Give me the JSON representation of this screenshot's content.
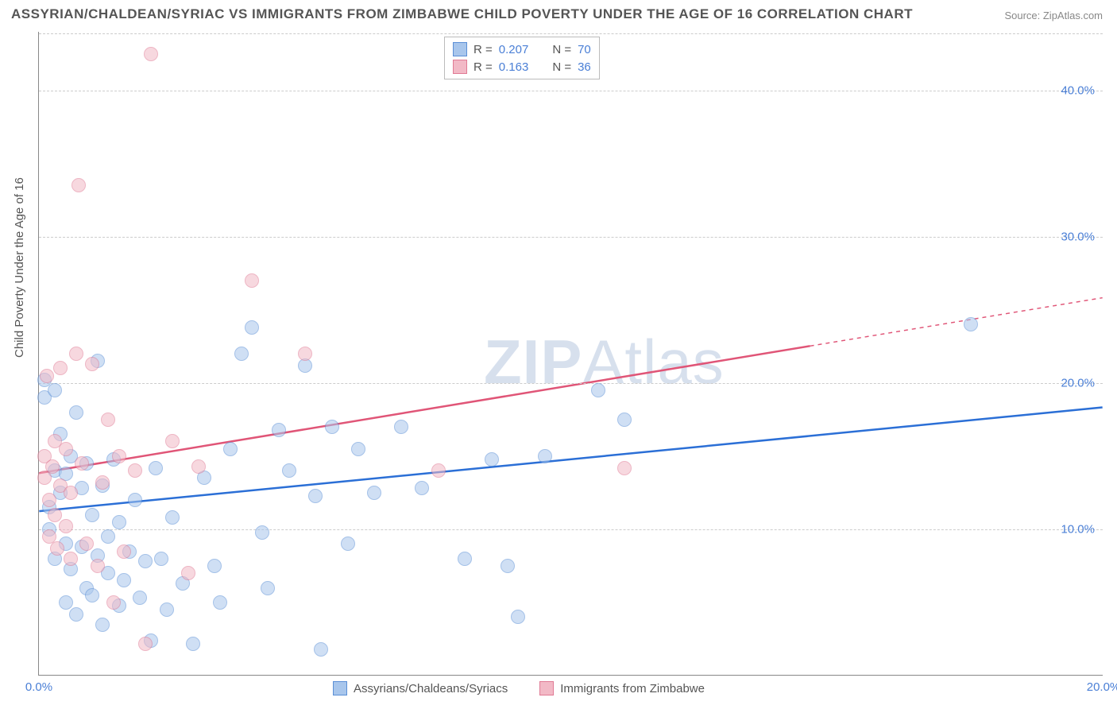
{
  "title": "ASSYRIAN/CHALDEAN/SYRIAC VS IMMIGRANTS FROM ZIMBABWE CHILD POVERTY UNDER THE AGE OF 16 CORRELATION CHART",
  "source": "Source: ZipAtlas.com",
  "ylabel": "Child Poverty Under the Age of 16",
  "watermark_a": "ZIP",
  "watermark_b": "Atlas",
  "chart": {
    "type": "scatter-with-regression",
    "background_color": "#ffffff",
    "grid_color": "#cccccc",
    "axis_color": "#888888",
    "xlim": [
      0,
      20
    ],
    "ylim": [
      0,
      44
    ],
    "yticks": [
      10,
      20,
      30,
      40
    ],
    "ytick_labels": [
      "10.0%",
      "20.0%",
      "30.0%",
      "40.0%"
    ],
    "xticks": [
      0,
      20
    ],
    "xtick_labels": [
      "0.0%",
      "20.0%"
    ],
    "label_fontsize": 15,
    "tick_color": "#4a7fd6",
    "marker_radius": 9,
    "marker_border_width": 1.2,
    "marker_opacity": 0.55,
    "line_width": 2.5,
    "dash_line_width": 1.5
  },
  "series": [
    {
      "name": "Assyrians/Chaldeans/Syriacs",
      "color_fill": "#a8c6ec",
      "color_border": "#5b8fd6",
      "line_color": "#2b6fd6",
      "R": "0.207",
      "N": "70",
      "regression": {
        "x1": 0,
        "y1": 11.2,
        "x2": 20,
        "y2": 18.3,
        "solid_to_x": 20
      },
      "points": [
        [
          0.1,
          20.2
        ],
        [
          0.1,
          19.0
        ],
        [
          0.2,
          11.5
        ],
        [
          0.2,
          10.0
        ],
        [
          0.3,
          14.0
        ],
        [
          0.3,
          8.0
        ],
        [
          0.3,
          19.5
        ],
        [
          0.4,
          16.5
        ],
        [
          0.4,
          12.5
        ],
        [
          0.5,
          13.8
        ],
        [
          0.5,
          9.0
        ],
        [
          0.5,
          5.0
        ],
        [
          0.6,
          15.0
        ],
        [
          0.6,
          7.3
        ],
        [
          0.7,
          18.0
        ],
        [
          0.7,
          4.2
        ],
        [
          0.8,
          12.8
        ],
        [
          0.8,
          8.8
        ],
        [
          0.9,
          6.0
        ],
        [
          0.9,
          14.5
        ],
        [
          1.0,
          11.0
        ],
        [
          1.0,
          5.5
        ],
        [
          1.1,
          8.2
        ],
        [
          1.1,
          21.5
        ],
        [
          1.2,
          13.0
        ],
        [
          1.2,
          3.5
        ],
        [
          1.3,
          9.5
        ],
        [
          1.3,
          7.0
        ],
        [
          1.4,
          14.8
        ],
        [
          1.5,
          4.8
        ],
        [
          1.5,
          10.5
        ],
        [
          1.6,
          6.5
        ],
        [
          1.7,
          8.5
        ],
        [
          1.8,
          12.0
        ],
        [
          1.9,
          5.3
        ],
        [
          2.0,
          7.8
        ],
        [
          2.1,
          2.4
        ],
        [
          2.2,
          14.2
        ],
        [
          2.3,
          8.0
        ],
        [
          2.4,
          4.5
        ],
        [
          2.5,
          10.8
        ],
        [
          2.7,
          6.3
        ],
        [
          2.9,
          2.2
        ],
        [
          3.1,
          13.5
        ],
        [
          3.3,
          7.5
        ],
        [
          3.4,
          5.0
        ],
        [
          3.6,
          15.5
        ],
        [
          3.8,
          22.0
        ],
        [
          4.0,
          23.8
        ],
        [
          4.2,
          9.8
        ],
        [
          4.3,
          6.0
        ],
        [
          4.5,
          16.8
        ],
        [
          4.7,
          14.0
        ],
        [
          5.0,
          21.2
        ],
        [
          5.2,
          12.3
        ],
        [
          5.3,
          1.8
        ],
        [
          5.5,
          17.0
        ],
        [
          5.8,
          9.0
        ],
        [
          6.0,
          15.5
        ],
        [
          6.3,
          12.5
        ],
        [
          6.8,
          17.0
        ],
        [
          7.2,
          12.8
        ],
        [
          8.0,
          8.0
        ],
        [
          8.5,
          14.8
        ],
        [
          9.0,
          4.0
        ],
        [
          9.5,
          15.0
        ],
        [
          10.5,
          19.5
        ],
        [
          11.0,
          17.5
        ],
        [
          17.5,
          24.0
        ],
        [
          8.8,
          7.5
        ]
      ]
    },
    {
      "name": "Immigrants from Zimbabwe",
      "color_fill": "#f2b9c6",
      "color_border": "#e07a94",
      "line_color": "#e05577",
      "R": "0.163",
      "N": "36",
      "regression": {
        "x1": 0,
        "y1": 13.8,
        "x2": 20,
        "y2": 25.8,
        "solid_to_x": 14.5
      },
      "points": [
        [
          0.1,
          15.0
        ],
        [
          0.1,
          13.5
        ],
        [
          0.15,
          20.5
        ],
        [
          0.2,
          12.0
        ],
        [
          0.2,
          9.5
        ],
        [
          0.25,
          14.3
        ],
        [
          0.3,
          11.0
        ],
        [
          0.3,
          16.0
        ],
        [
          0.35,
          8.7
        ],
        [
          0.4,
          13.0
        ],
        [
          0.4,
          21.0
        ],
        [
          0.5,
          10.2
        ],
        [
          0.5,
          15.5
        ],
        [
          0.6,
          8.0
        ],
        [
          0.6,
          12.5
        ],
        [
          0.7,
          22.0
        ],
        [
          0.75,
          33.5
        ],
        [
          0.8,
          14.5
        ],
        [
          0.9,
          9.0
        ],
        [
          1.0,
          21.3
        ],
        [
          1.1,
          7.5
        ],
        [
          1.2,
          13.2
        ],
        [
          1.3,
          17.5
        ],
        [
          1.4,
          5.0
        ],
        [
          1.5,
          15.0
        ],
        [
          1.6,
          8.5
        ],
        [
          1.8,
          14.0
        ],
        [
          2.0,
          2.2
        ],
        [
          2.1,
          42.5
        ],
        [
          2.5,
          16.0
        ],
        [
          3.0,
          14.3
        ],
        [
          4.0,
          27.0
        ],
        [
          5.0,
          22.0
        ],
        [
          7.5,
          14.0
        ],
        [
          11.0,
          14.2
        ],
        [
          2.8,
          7.0
        ]
      ]
    }
  ],
  "legend_bottom": [
    {
      "label": "Assyrians/Chaldeans/Syriacs",
      "fill": "#a8c6ec",
      "border": "#5b8fd6"
    },
    {
      "label": "Immigrants from Zimbabwe",
      "fill": "#f2b9c6",
      "border": "#e07a94"
    }
  ]
}
